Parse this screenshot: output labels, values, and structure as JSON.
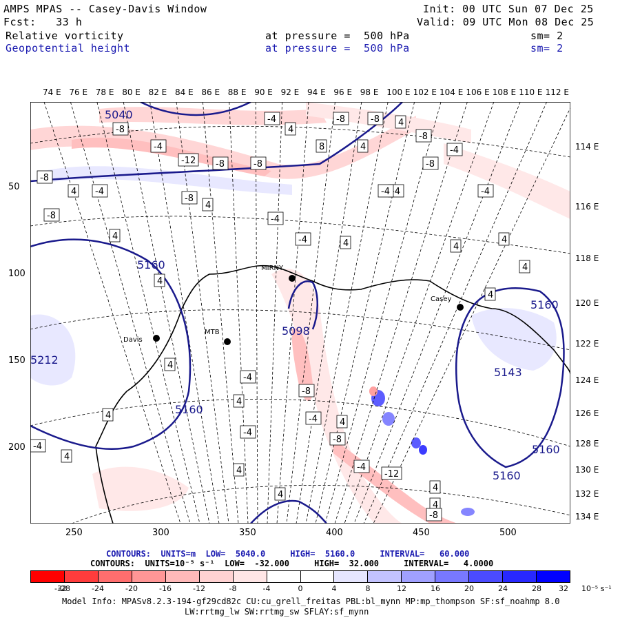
{
  "header": {
    "title": "AMPS MPAS -- Casey-Davis Window",
    "fcst": "Fcst:   33 h",
    "init": "Init: 00 UTC Sun 07 Dec 25",
    "valid": "Valid: 09 UTC Mon 08 Dec 25",
    "field1": "Relative vorticity",
    "field1_pressure": "at pressure =  500 hPa",
    "field1_sm": "sm= 2",
    "field2": "Geopotential height",
    "field2_pressure": "at pressure =  500 hPa",
    "field2_sm": "sm= 2"
  },
  "map": {
    "top_lon_labels": [
      "74 E",
      "76 E",
      "78 E",
      "80 E",
      "82 E",
      "84 E",
      "86 E",
      "88 E",
      "90 E",
      "92 E",
      "94 E",
      "96 E",
      "98 E",
      "100 E",
      "102 E",
      "104 E",
      "106 E",
      "108 E",
      "110 E",
      "112 E"
    ],
    "right_lon_labels": [
      "114 E",
      "116 E",
      "118 E",
      "120 E",
      "122 E",
      "124 E",
      "126 E",
      "128 E",
      "130 E",
      "132 E",
      "134 E"
    ],
    "left_y_labels": [
      "50",
      "100",
      "150",
      "200"
    ],
    "bottom_x_labels": [
      "250",
      "300",
      "350",
      "400",
      "450",
      "500"
    ],
    "stations": [
      {
        "name": "Davis"
      },
      {
        "name": "MTB"
      },
      {
        "name": "MIRNY"
      },
      {
        "name": "Casey"
      }
    ],
    "height_labels": [
      "5040",
      "5160",
      "5098",
      "5160",
      "5212",
      "5160",
      "5143",
      "5160",
      "5160"
    ],
    "vort_labels": [
      "-8",
      "-4",
      "8",
      "4",
      "-12"
    ]
  },
  "contours": {
    "line1": "CONTOURS:  UNITS=m  LOW=  5040.0     HIGH=  5160.0     INTERVAL=   60.000",
    "line2": "CONTOURS:  UNITS=10⁻⁵ s⁻¹  LOW=  -32.000     HIGH=  32.000     INTERVAL=   4.0000"
  },
  "colorbar": {
    "colors": [
      "#ff0000",
      "#ff3c3c",
      "#ff6e6e",
      "#ff9696",
      "#ffb9b9",
      "#ffd2d2",
      "#ffe6e6",
      "#ffffff",
      "#ffffff",
      "#e6e6ff",
      "#c3c3ff",
      "#a0a0ff",
      "#7878ff",
      "#4b4bff",
      "#2828ff",
      "#0000ff"
    ],
    "ticks": [
      "-32",
      "-28",
      "-24",
      "-20",
      "-16",
      "-12",
      "-8",
      "-4",
      "0",
      "4",
      "8",
      "12",
      "16",
      "20",
      "24",
      "28",
      "32"
    ],
    "units": "10⁻⁵ s⁻¹"
  },
  "info": {
    "line1": "Model Info: MPASv8.2.3-194-gf29cd82c CU:cu_grell_freitas PBL:bl_mynn MP:mp_thompson SF:sf_noahmp 8.0",
    "line2": "LW:rrtmg_lw SW:rrtmg_sw SFLAY:sf_mynn"
  },
  "colors": {
    "height_contour": "#1a1a8c",
    "coast": "#000000",
    "grid": "#000000"
  }
}
